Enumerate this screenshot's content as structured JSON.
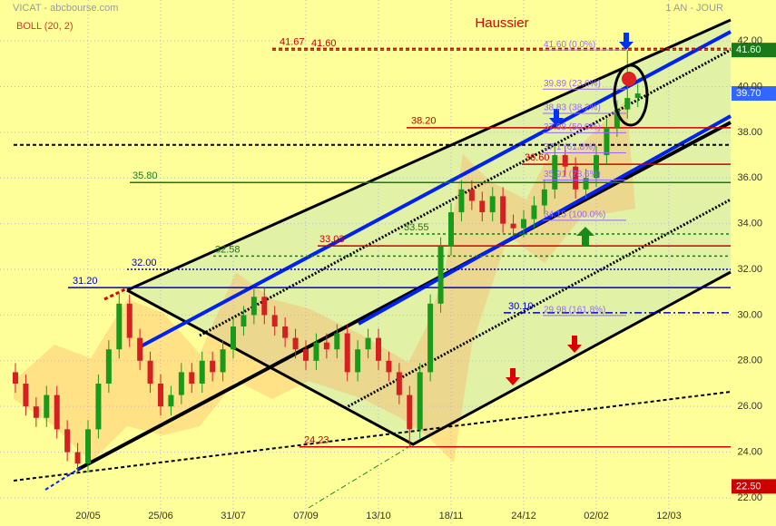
{
  "chart_data": {
    "type": "candlestick",
    "title": "VICAT - abcbourse.com",
    "period": "1 AN - JOUR",
    "indicator": "BOLL (20, 2)",
    "annotation": "Haussier",
    "categories": [
      null,
      null,
      null,
      null,
      null,
      null,
      null,
      "20/05",
      null,
      null,
      null,
      null,
      null,
      null,
      "25/06",
      null,
      null,
      null,
      null,
      null,
      null,
      "31/07",
      null,
      null,
      null,
      null,
      null,
      null,
      "07/09",
      null,
      null,
      null,
      null,
      null,
      null,
      "13/10",
      null,
      null,
      null,
      null,
      null,
      null,
      "18/11",
      null,
      null,
      null,
      null,
      null,
      null,
      "24/12",
      null,
      null,
      null,
      null,
      null,
      null,
      "02/02",
      null,
      null,
      null,
      null,
      null,
      null,
      "12/03"
    ],
    "open": [
      27.5,
      27.0,
      26.0,
      25.5,
      26.5,
      25.0,
      24.0,
      23.5,
      25.0,
      27.0,
      28.5,
      30.5,
      29.0,
      28.0,
      27.0,
      26.0,
      26.5,
      27.5,
      27.0,
      28.0,
      27.5,
      28.5,
      29.5,
      30.0,
      30.8,
      30.0,
      29.5,
      29.0,
      28.5,
      28.0,
      28.8,
      28.5,
      29.2,
      27.5,
      28.5,
      29.0,
      28.0,
      27.5,
      26.5,
      25.0,
      27.5,
      30.5,
      33.0,
      34.5,
      35.5,
      35.0,
      34.5,
      35.2,
      34.0,
      33.8,
      34.2,
      34.8,
      35.5,
      37.0,
      36.5,
      35.5,
      36.0,
      37.0,
      38.2,
      39.0,
      39.5,
      null,
      null,
      null
    ],
    "high": [
      27.9,
      27.4,
      26.4,
      26.9,
      26.9,
      25.4,
      24.4,
      25.4,
      27.4,
      28.9,
      31.0,
      30.9,
      29.4,
      28.4,
      27.4,
      26.9,
      27.9,
      27.9,
      28.4,
      28.4,
      28.9,
      29.9,
      30.4,
      31.2,
      31.2,
      30.4,
      29.9,
      29.4,
      28.9,
      29.2,
      29.2,
      29.6,
      29.6,
      28.9,
      29.4,
      29.4,
      28.4,
      27.9,
      26.9,
      27.9,
      30.9,
      33.4,
      34.9,
      35.9,
      35.9,
      35.4,
      35.6,
      35.6,
      34.4,
      34.6,
      35.2,
      35.9,
      37.4,
      37.4,
      36.9,
      36.4,
      37.4,
      38.6,
      39.4,
      41.6,
      40.1,
      null,
      null,
      null
    ],
    "low": [
      26.6,
      25.6,
      25.1,
      25.1,
      24.6,
      23.6,
      23.1,
      23.1,
      24.6,
      26.6,
      28.1,
      28.6,
      27.6,
      26.6,
      25.6,
      25.6,
      26.1,
      26.6,
      26.6,
      27.1,
      27.1,
      28.1,
      29.1,
      29.6,
      29.6,
      29.1,
      28.6,
      28.1,
      27.6,
      27.6,
      28.1,
      28.1,
      27.1,
      27.1,
      28.1,
      27.6,
      27.1,
      26.1,
      24.23,
      24.6,
      27.1,
      30.1,
      32.6,
      34.1,
      34.6,
      34.1,
      34.1,
      33.6,
      33.4,
      33.4,
      33.8,
      34.4,
      35.1,
      36.1,
      35.1,
      35.1,
      35.6,
      36.6,
      37.8,
      38.6,
      39.1,
      null,
      null,
      null
    ],
    "close": [
      27.0,
      26.0,
      25.5,
      26.5,
      25.0,
      24.0,
      23.5,
      25.0,
      27.0,
      28.5,
      30.5,
      29.0,
      28.0,
      27.0,
      26.0,
      26.5,
      27.5,
      27.0,
      28.0,
      27.5,
      28.5,
      29.5,
      30.0,
      30.8,
      30.0,
      29.5,
      29.0,
      28.5,
      28.0,
      28.8,
      28.5,
      29.2,
      27.5,
      28.5,
      29.0,
      28.0,
      27.5,
      26.5,
      25.0,
      27.5,
      30.5,
      33.0,
      34.5,
      35.5,
      35.0,
      34.5,
      35.2,
      34.0,
      33.8,
      34.2,
      34.8,
      35.5,
      37.0,
      36.5,
      35.5,
      36.0,
      37.0,
      38.2,
      39.0,
      39.5,
      39.7,
      null,
      null,
      null
    ],
    "up_color": "#1a9a1a",
    "down_color": "#d42020",
    "ylim": [
      21.76,
      43.79
    ],
    "yticks": [
      {
        "value": 22,
        "label": "22.00"
      },
      {
        "value": 24,
        "label": "24.00"
      },
      {
        "value": 26,
        "label": "26.00"
      },
      {
        "value": 28,
        "label": "28.00"
      },
      {
        "value": 30,
        "label": "30.00"
      },
      {
        "value": 32,
        "label": "32.00"
      },
      {
        "value": 34,
        "label": "34.00"
      },
      {
        "value": 36,
        "label": "36.00"
      },
      {
        "value": 38,
        "label": "38.00"
      },
      {
        "value": 40,
        "label": "40.00"
      },
      {
        "value": 42,
        "label": "42.00"
      }
    ],
    "grid": true,
    "levels": [
      {
        "value": 41.67,
        "label": "41.67",
        "color": "#cc0000",
        "dash": "4 3"
      },
      {
        "value": 41.6,
        "label": "41.60",
        "color": "#cc0000",
        "dash": "4 3"
      },
      {
        "value": 38.2,
        "label": "38.20",
        "color": "#cc0000"
      },
      {
        "value": 37.45,
        "color": "#000000",
        "dash": "4 3"
      },
      {
        "value": 36.6,
        "label": "36.60",
        "color": "#cc0000"
      },
      {
        "value": 35.8,
        "label": "35.80",
        "color": "#1a7a1a"
      },
      {
        "value": 33.55,
        "label": "33.55",
        "color": "#1a7a1a",
        "dash": "3 3"
      },
      {
        "value": 33.03,
        "label": "33.03",
        "color": "#cc0000"
      },
      {
        "value": 32.58,
        "label": "32.58",
        "color": "#1a7a1a",
        "dash": "3 3"
      },
      {
        "value": 32.0,
        "label": "32.00",
        "color": "#0000cc",
        "dash": "2 2"
      },
      {
        "value": 31.2,
        "label": "31.20",
        "color": "#0000cc"
      },
      {
        "value": 30.1,
        "label": "30.10",
        "color": "#0000cc",
        "dash": "8 3 2 3"
      },
      {
        "value": 24.23,
        "label": "24.23",
        "color": "#cc0000"
      }
    ],
    "fibonacci": [
      {
        "value": 41.6,
        "label": "41.60 (0.0%)"
      },
      {
        "value": 39.89,
        "label": "39.89 (23.6%)"
      },
      {
        "value": 38.83,
        "label": "38.83 (38.2%)"
      },
      {
        "value": 37.98,
        "label": "37.98 (50.0%)"
      },
      {
        "value": 37.1,
        "label": "37.1 (61.8%)"
      },
      {
        "value": 35.91,
        "label": "35.91 (78.6%)"
      },
      {
        "value": 34.15,
        "label": "34.15 (100.0%)"
      },
      {
        "value": 29.98,
        "label": "29.98 (161.8%)"
      }
    ],
    "fib_color": "#9966ff",
    "price_tags": [
      {
        "value": 41.6,
        "label": "41.60",
        "color": "#1a7a1a"
      },
      {
        "value": 39.7,
        "label": "39.70",
        "color": "#3366ff"
      },
      {
        "value": 22.5,
        "label": "22.50",
        "color": "#cc0000"
      }
    ]
  }
}
